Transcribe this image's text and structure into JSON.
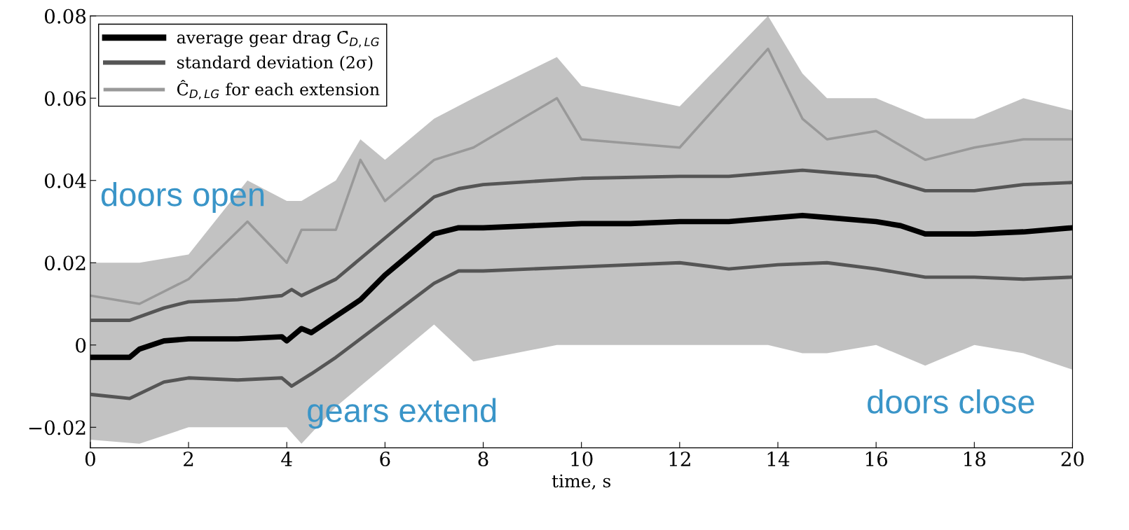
{
  "chart_data": {
    "type": "line",
    "xlabel": "time, s",
    "xlim": [
      0,
      20
    ],
    "xticks": [
      0,
      2,
      4,
      6,
      8,
      10,
      12,
      14,
      16,
      18,
      20
    ],
    "ylim": [
      -0.025,
      0.08
    ],
    "yticks": [
      {
        "value": -0.02,
        "label": "−0.02"
      },
      0,
      0.02,
      0.04,
      0.06,
      0.08
    ],
    "grid": false,
    "legend": "top left",
    "marker": "none",
    "line_style": "solid",
    "series": [
      {
        "name": "Ĉ$_{D,LG}$ for each extension",
        "color": "#999999",
        "x": [
          0,
          1,
          2,
          3.2,
          4,
          4.3,
          5,
          5.5,
          6,
          7,
          7.8,
          9.5,
          10,
          12,
          13.8,
          14.5,
          15,
          16,
          17,
          18,
          19,
          20
        ],
        "values": [
          0.012,
          0.01,
          0.016,
          0.03,
          0.02,
          0.028,
          0.028,
          0.045,
          0.035,
          0.045,
          0.048,
          0.06,
          0.05,
          0.048,
          0.072,
          0.055,
          0.05,
          0.052,
          0.045,
          0.048,
          0.05,
          0.05
        ],
        "lower": [
          -0.023,
          -0.024,
          -0.02,
          -0.02,
          -0.02,
          -0.024,
          -0.015,
          -0.01,
          -0.005,
          0.005,
          -0.004,
          0.0,
          0.0,
          0.0,
          0.0,
          -0.002,
          -0.002,
          0.0,
          -0.005,
          0.0,
          -0.002,
          -0.006
        ],
        "upper": [
          0.02,
          0.02,
          0.022,
          0.04,
          0.035,
          0.035,
          0.04,
          0.05,
          0.045,
          0.055,
          0.06,
          0.07,
          0.063,
          0.058,
          0.08,
          0.066,
          0.06,
          0.06,
          0.055,
          0.055,
          0.06,
          0.057
        ]
      },
      {
        "name": "standard deviation (2σ)",
        "color": "#555555",
        "x": [
          0,
          0.8,
          1.5,
          2,
          3,
          3.9,
          4.1,
          4.3,
          5,
          6,
          7,
          7.5,
          8,
          10,
          12,
          13,
          14,
          14.5,
          15,
          16,
          17,
          18,
          19,
          20
        ],
        "values": [
          0.006,
          0.006,
          0.009,
          0.0105,
          0.011,
          0.012,
          0.0135,
          0.012,
          0.016,
          0.026,
          0.036,
          0.038,
          0.039,
          0.0405,
          0.041,
          0.041,
          0.042,
          0.0425,
          0.042,
          0.041,
          0.0375,
          0.0375,
          0.039,
          0.0395
        ]
      },
      {
        "color": "#555555",
        "x": [
          0,
          0.8,
          1.5,
          2,
          3,
          3.9,
          4.1,
          4.5,
          5,
          6,
          7,
          7.5,
          8,
          10,
          12,
          13,
          14,
          15,
          16,
          17,
          18,
          19,
          20
        ],
        "values": [
          -0.012,
          -0.013,
          -0.009,
          -0.008,
          -0.0085,
          -0.008,
          -0.01,
          -0.007,
          -0.003,
          0.006,
          0.015,
          0.018,
          0.018,
          0.019,
          0.02,
          0.0185,
          0.0195,
          0.02,
          0.0185,
          0.0165,
          0.0165,
          0.016,
          0.0165
        ]
      },
      {
        "name": "average gear drag C̄$_{D,LG}$",
        "color": "#000000",
        "x": [
          0,
          0.5,
          0.8,
          1,
          1.5,
          2,
          3,
          3.9,
          4,
          4.3,
          4.5,
          5,
          5.5,
          6,
          6.5,
          7,
          7.5,
          8,
          9,
          10,
          11,
          12,
          13,
          14,
          14.5,
          15,
          16,
          16.5,
          17,
          18,
          19,
          20
        ],
        "values": [
          -0.003,
          -0.003,
          -0.003,
          -0.001,
          0.001,
          0.0015,
          0.0015,
          0.002,
          0.001,
          0.004,
          0.003,
          0.007,
          0.011,
          0.017,
          0.022,
          0.027,
          0.0285,
          0.0285,
          0.029,
          0.0295,
          0.0295,
          0.03,
          0.03,
          0.031,
          0.0315,
          0.031,
          0.03,
          0.029,
          0.027,
          0.027,
          0.0275,
          0.0285
        ]
      }
    ],
    "annotations": [
      "doors open",
      "gears extend",
      "doors close"
    ]
  }
}
